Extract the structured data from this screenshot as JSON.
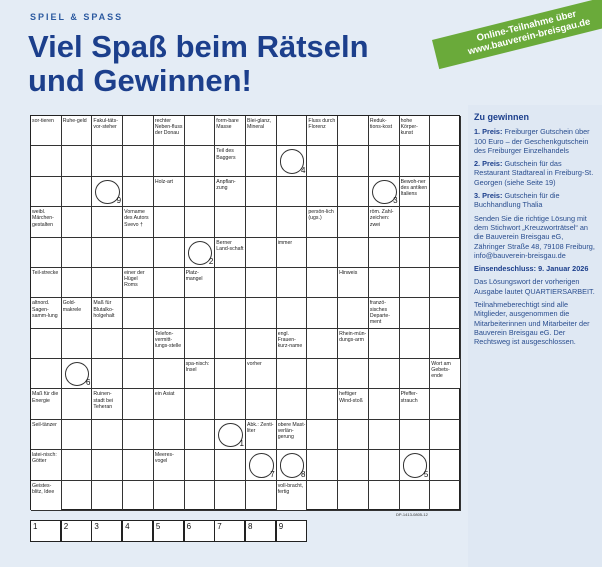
{
  "header": {
    "kicker": "SPIEL & SPASS",
    "title_lines": [
      "Viel Spaß beim Rätseln",
      "und Gewinnen!"
    ],
    "banner_lines": [
      "Online-Teilnahme über",
      "www.bauverein-breisgau.de"
    ]
  },
  "crossword": {
    "clues": [
      "sor-tieren",
      "Ruhe-geld",
      "Fakul-täts-vor-steher",
      "rechter Neben-fluss der Donau",
      "form-bare Masse",
      "Blei-glanz, Mineral",
      "Fluss durch Florenz",
      "Reduk-tions-kost",
      "hohe Körper-kunst",
      "Teil des Baggers",
      "Holz-art",
      "Anpflan-zung",
      "Bewoh-ner des antiken Italiens",
      "weibl. Märchen-gestalten",
      "Vorname des Autors Svevo †",
      "persön-lich (ugs.)",
      "röm. Zahl-zeichen: zwei",
      "Berner Land-schaft",
      "immer",
      "Teil-strecke",
      "einer der Hügel Roms",
      "Platz-mangel",
      "Hinweis",
      "altnord. Sagen-samm-lung",
      "Gold-makrele",
      "Maß für Blutalko-holgehalt",
      "franzö-sisches Departe-ment",
      "Telefon-vermitt-lungs-stelle",
      "engl. Frauen-kurz-name",
      "Rhein-mün-dungs-arm",
      "spa-nisch: Insel",
      "vorher",
      "Wort am Gebets-ende",
      "Maß für die Energie",
      "Ruinen-stadt bei Teheran",
      "ein Asiat",
      "heftiger Wind-stoß",
      "Pfeffer-strauch",
      "Seil-tänzer",
      "Abk.: Zenti-liter",
      "obere Mast-verlän-gerung",
      "latei-nisch: Götter",
      "Meeres-vogel",
      "Geistes-blitz, Idee",
      "voll-bracht, fertig"
    ],
    "circle_numbers": [
      1,
      2,
      3,
      4,
      5,
      6,
      7,
      8,
      9
    ],
    "solution_numbers": [
      1,
      2,
      3,
      4,
      5,
      6,
      7,
      8,
      9
    ],
    "code": "DP-1413-0805-12"
  },
  "sidebar": {
    "heading": "Zu gewinnen",
    "prizes": [
      {
        "label": "1. Preis:",
        "text": "Freiburger Gutschein über 100 Euro – der Geschenkgutschein des Freiburger Einzelhandels"
      },
      {
        "label": "2. Preis:",
        "text": "Gutschein für das Restaurant Stadtareal in Freiburg-St. Georgen (siehe Seite 19)"
      },
      {
        "label": "3. Preis:",
        "text": "Gutschein für die Buchhandlung Thalia"
      }
    ],
    "entry": "Senden Sie die richtige Lösung mit dem Stichwort „Kreuzworträtsel“ an die Bauverein Breisgau eG, Zähringer Straße 48, 79108 Freiburg, info@bauverein-breisgau.de",
    "deadline": "Einsendeschluss: 9. Januar 2026",
    "previous": "Das Lösungswort der vorherigen Ausgabe lautet QUARTIERSARBEIT.",
    "terms": "Teilnahmeberechtigt sind alle Mitglieder, ausgenommen die Mitarbeiterinnen und Mitarbeiter der Bauverein Breisgau eG. Der Rechtsweg ist ausgeschlossen."
  }
}
